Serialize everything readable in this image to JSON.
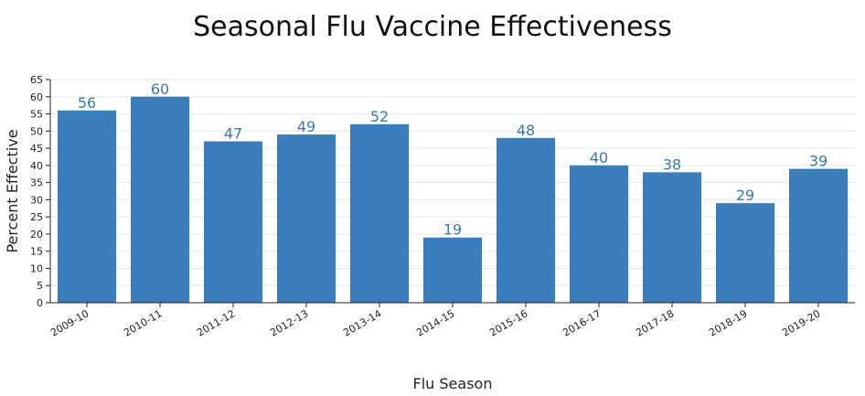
{
  "chart_data": {
    "type": "bar",
    "title": "Seasonal Flu Vaccine Effectiveness",
    "xlabel": "Flu Season",
    "ylabel": "Percent Effective",
    "categories": [
      "2009-10",
      "2010-11",
      "2011-12",
      "2012-13",
      "2013-14",
      "2014-15",
      "2015-16",
      "2016-17",
      "2017-18",
      "2018-19",
      "2019-20"
    ],
    "values": [
      56,
      60,
      47,
      49,
      52,
      19,
      48,
      40,
      38,
      29,
      39
    ],
    "ylim": [
      0,
      65
    ],
    "yticks": [
      0,
      5,
      10,
      15,
      20,
      25,
      30,
      35,
      40,
      45,
      50,
      55,
      60,
      65
    ],
    "grid": true,
    "bar_color": "#3a7fbc",
    "label_color": "#3a78b5"
  }
}
